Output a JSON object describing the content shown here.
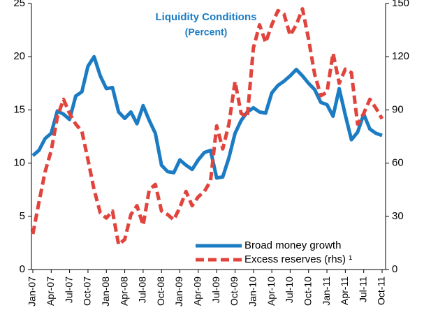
{
  "chart_data": {
    "type": "line",
    "title": "Liquidity Conditions",
    "subtitle": "(Percent)",
    "categories": [
      "Jan-07",
      null,
      null,
      "Apr-07",
      null,
      null,
      "Jul-07",
      null,
      null,
      "Oct-07",
      null,
      null,
      "Jan-08",
      null,
      null,
      "Apr-08",
      null,
      null,
      "Jul-08",
      null,
      null,
      "Oct-08",
      null,
      null,
      "Jan-09",
      null,
      null,
      "Apr-09",
      null,
      null,
      "Jul-09",
      null,
      null,
      "Oct-09",
      null,
      null,
      "Jan-10",
      null,
      null,
      "Apr-10",
      null,
      null,
      "Jul-10",
      null,
      null,
      "Oct-10",
      null,
      null,
      "Jan-11",
      null,
      null,
      "Apr-11",
      null,
      null,
      "Jul-11",
      null,
      null,
      "Oct-11"
    ],
    "series": [
      {
        "name": "Broad money growth",
        "color": "#1b7cc3",
        "axis": "y",
        "values": [
          10.7,
          11.2,
          12.3,
          12.8,
          14.9,
          14.6,
          14.1,
          16.3,
          16.7,
          19.1,
          20.0,
          18.2,
          17.0,
          17.1,
          14.8,
          14.2,
          14.8,
          13.7,
          15.4,
          14.0,
          12.8,
          9.8,
          9.2,
          9.1,
          10.3,
          9.8,
          9.4,
          10.3,
          11.0,
          11.2,
          8.6,
          8.7,
          10.5,
          12.8,
          14.0,
          14.8,
          15.2,
          14.8,
          14.7,
          16.6,
          17.3,
          17.7,
          18.2,
          18.8,
          18.2,
          17.5,
          16.9,
          15.7,
          15.5,
          14.4,
          17.0,
          14.5,
          12.2,
          12.9,
          14.6,
          13.2,
          12.8,
          12.6
        ]
      },
      {
        "name": "Excess reserves (rhs) ¹",
        "color": "#e0443c",
        "axis": "y2",
        "dashed": true,
        "values": [
          20,
          38,
          55,
          67,
          86,
          96,
          88,
          82,
          78,
          62,
          45,
          32,
          29,
          33,
          14,
          17,
          31,
          36,
          25,
          45,
          48,
          33,
          31,
          28,
          35,
          44,
          36,
          41,
          44,
          50,
          81,
          68,
          82,
          106,
          88,
          86,
          125,
          138,
          128,
          138,
          146,
          144,
          132,
          138,
          147,
          130,
          110,
          98,
          100,
          122,
          105,
          113,
          111,
          82,
          88,
          96,
          91,
          85
        ]
      }
    ],
    "ylim": [
      0,
      25
    ],
    "yticks": [
      0,
      5,
      10,
      15,
      20,
      25
    ],
    "y2lim": [
      0,
      150
    ],
    "y2ticks": [
      0,
      30,
      60,
      90,
      120,
      150
    ],
    "legend": "lower right"
  }
}
